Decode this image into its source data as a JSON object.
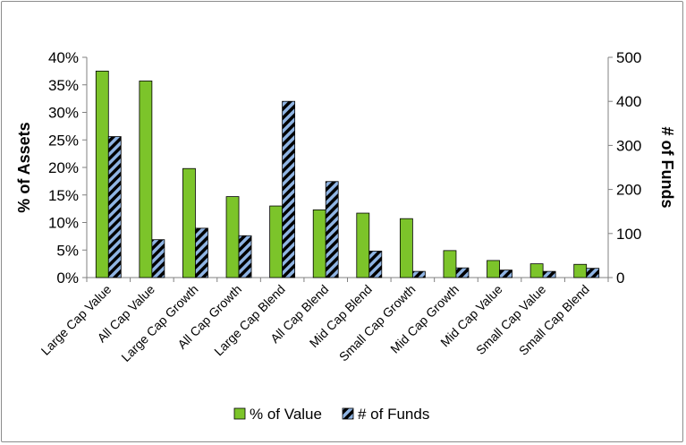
{
  "chart_data": {
    "type": "bar",
    "categories": [
      "Large Cap Value",
      "All Cap Value",
      "Large Cap Growth",
      "All Cap Growth",
      "Large Cap Blend",
      "All Cap Blend",
      "Mid Cap Blend",
      "Small Cap Growth",
      "Mid Cap Growth",
      "Mid Cap Value",
      "Small Cap Value",
      "Small Cap Blend"
    ],
    "series": [
      {
        "name": "% of Value",
        "axis": "left",
        "values": [
          37.5,
          35.7,
          19.8,
          14.7,
          13.0,
          12.3,
          11.7,
          10.7,
          4.9,
          3.1,
          2.5,
          2.4
        ],
        "color": "#7cc42a"
      },
      {
        "name": "# of Funds",
        "axis": "right",
        "values": [
          320,
          86,
          112,
          95,
          400,
          218,
          60,
          14,
          22,
          17,
          14,
          21
        ],
        "color": "#8fb4e3",
        "pattern": "diagonal-stripes-black"
      }
    ],
    "ylabel": "% of Assets",
    "y2label": "# of Funds",
    "ylim": [
      0,
      40
    ],
    "y2lim": [
      0,
      500
    ],
    "yticks": [
      "0%",
      "5%",
      "10%",
      "15%",
      "20%",
      "25%",
      "30%",
      "35%",
      "40%"
    ],
    "y2ticks": [
      "0",
      "100",
      "200",
      "300",
      "400",
      "500"
    ],
    "legend_position": "bottom",
    "grid": false
  }
}
